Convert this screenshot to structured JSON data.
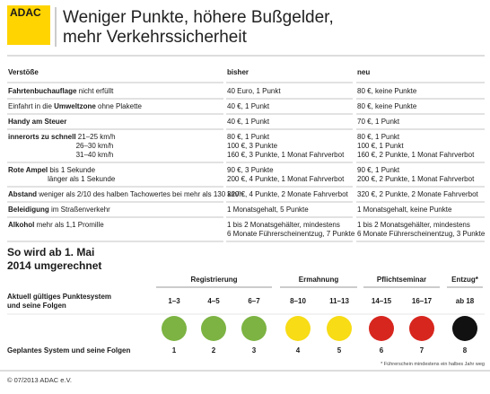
{
  "header": {
    "logo": "ADAC",
    "title_lines": [
      "Weniger Punkte, höhere Bußgelder,",
      "mehr Verkehrssicherheit"
    ]
  },
  "table": {
    "columns": [
      "Verstöße",
      "bisher",
      "neu"
    ],
    "rows": [
      {
        "offense": [
          [
            {
              "text": "Fahrtenbuchauflage",
              "bold": true
            },
            {
              "text": " nicht erfüllt",
              "bold": false
            }
          ]
        ],
        "before": [
          "40 Euro, 1 Punkt"
        ],
        "after": [
          "80 €, keine Punkte"
        ]
      },
      {
        "offense": [
          [
            {
              "text": "Einfahrt in die ",
              "bold": false
            },
            {
              "text": "Umweltzone",
              "bold": true
            },
            {
              "text": " ohne Plakette",
              "bold": false
            }
          ]
        ],
        "before": [
          "40 €, 1 Punkt"
        ],
        "after": [
          "80 €, keine Punkte"
        ]
      },
      {
        "offense": [
          [
            {
              "text": "Handy am Steuer",
              "bold": true
            }
          ]
        ],
        "before": [
          "40 €, 1 Punkt"
        ],
        "after": [
          "70 €, 1 Punkt"
        ]
      },
      {
        "offense": [
          [
            {
              "text": "innerorts zu schnell",
              "bold": true
            },
            {
              "text": " 21–25 km/h",
              "bold": false
            }
          ],
          [
            {
              "text": "26–30 km/h",
              "bold": false
            }
          ],
          [
            {
              "text": "31–40 km/h",
              "bold": false
            }
          ]
        ],
        "before": [
          "80 €, 1 Punkt",
          "100 €, 3 Punkte",
          "160 €, 3 Punkte, 1 Monat Fahrverbot"
        ],
        "after": [
          "80 €, 1 Punkt",
          "100 €, 1 Punkt",
          "160 €, 2 Punkte, 1 Monat Fahrverbot"
        ]
      },
      {
        "offense": [
          [
            {
              "text": "Rote Ampel",
              "bold": true
            },
            {
              "text": " bis 1 Sekunde",
              "bold": false
            }
          ],
          [
            {
              "text": "länger als 1 Sekunde",
              "bold": false
            }
          ]
        ],
        "before": [
          "90 €, 3 Punkte",
          "200 €, 4 Punkte, 1 Monat Fahrverbot"
        ],
        "after": [
          "90 €, 1 Punkt",
          "200 €, 2 Punkte, 1 Monat Fahrverbot"
        ]
      },
      {
        "offense": [
          [
            {
              "text": "Abstand",
              "bold": true
            },
            {
              "text": " weniger als 2/10 des halben Tachowertes bei mehr als 130 km/h",
              "bold": false
            }
          ]
        ],
        "before": [
          "320 €, 4 Punkte, 2 Monate Fahrverbot"
        ],
        "after": [
          "320 €, 2 Punkte, 2 Monate Fahrverbot"
        ]
      },
      {
        "offense": [
          [
            {
              "text": "Beleidigung",
              "bold": true
            },
            {
              "text": " im Straßenverkehr",
              "bold": false
            }
          ]
        ],
        "before": [
          "1 Monatsgehalt, 5 Punkte"
        ],
        "after": [
          "1 Monatsgehalt, keine Punkte"
        ]
      },
      {
        "offense": [
          [
            {
              "text": "Alkohol",
              "bold": true
            },
            {
              "text": " mehr als 1,1 Promille",
              "bold": false
            }
          ]
        ],
        "before": [
          "1 bis 2 Monatsgehälter, mindestens",
          "6 Monate Führerscheinentzug, 7 Punkte"
        ],
        "after": [
          "1 bis 2 Monatsgehälter, mindestens",
          "6 Monate Führerscheinentzug, 3 Punkte"
        ]
      }
    ]
  },
  "conversion": {
    "title_lines": [
      "So wird ab 1. Mai",
      "2014 umgerechnet"
    ],
    "current_label_lines": [
      "Aktuell gültiges Punktesystem",
      "und seine Folgen"
    ],
    "planned_label": "Geplantes System und seine Folgen",
    "groups": [
      {
        "title": "Registrierung",
        "columns": [
          {
            "range": "1–3",
            "color": "#7cb342",
            "new": 1
          },
          {
            "range": "4–5",
            "color": "#7cb342",
            "new": 2
          },
          {
            "range": "6–7",
            "color": "#7cb342",
            "new": 3
          }
        ]
      },
      {
        "title": "Ermahnung",
        "columns": [
          {
            "range": "8–10",
            "color": "#f7dc16",
            "new": 4
          },
          {
            "range": "11–13",
            "color": "#f7dc16",
            "new": 5
          }
        ]
      },
      {
        "title": "Pflichtseminar",
        "columns": [
          {
            "range": "14–15",
            "color": "#d7261e",
            "new": 6
          },
          {
            "range": "16–17",
            "color": "#d7261e",
            "new": 7
          }
        ]
      },
      {
        "title": "Entzug*",
        "columns": [
          {
            "range": "ab 18",
            "color": "#111111",
            "new": 8
          }
        ]
      }
    ],
    "footnote": "* Führerschein mindestens ein halbes Jahr weg"
  },
  "footer": "© 07/2013 ADAC e.V."
}
